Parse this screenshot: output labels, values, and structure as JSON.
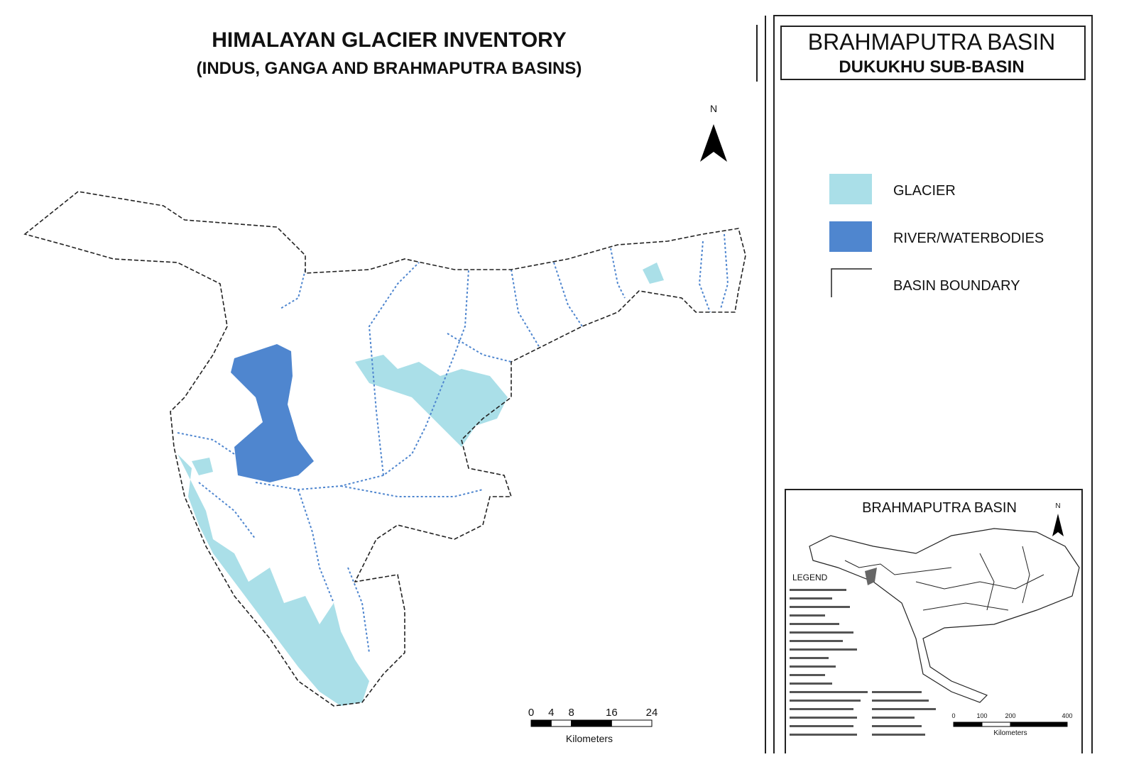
{
  "map": {
    "title": "HIMALAYAN GLACIER INVENTORY",
    "subtitle": "(INDUS, GANGA AND BRAHMAPUTRA BASINS)",
    "north": "N",
    "scale": {
      "ticks": [
        0,
        4,
        8,
        16,
        24
      ],
      "unit": "Kilometers"
    }
  },
  "panel": {
    "title": "BRAHMAPUTRA BASIN",
    "subtitle": "DUKUKHU SUB-BASIN",
    "legend": [
      {
        "label": "GLACIER",
        "color": "#aadfe8"
      },
      {
        "label": "RIVER/WATERBODIES",
        "color": "#4f86cf"
      },
      {
        "label": "BASIN BOUNDARY",
        "color": "#222222"
      }
    ]
  },
  "inset": {
    "title": "BRAHMAPUTRA BASIN",
    "north": "N",
    "legend_title": "LEGEND",
    "scale": {
      "ticks": [
        0,
        100,
        200,
        400
      ],
      "unit": "Kilometers"
    }
  }
}
